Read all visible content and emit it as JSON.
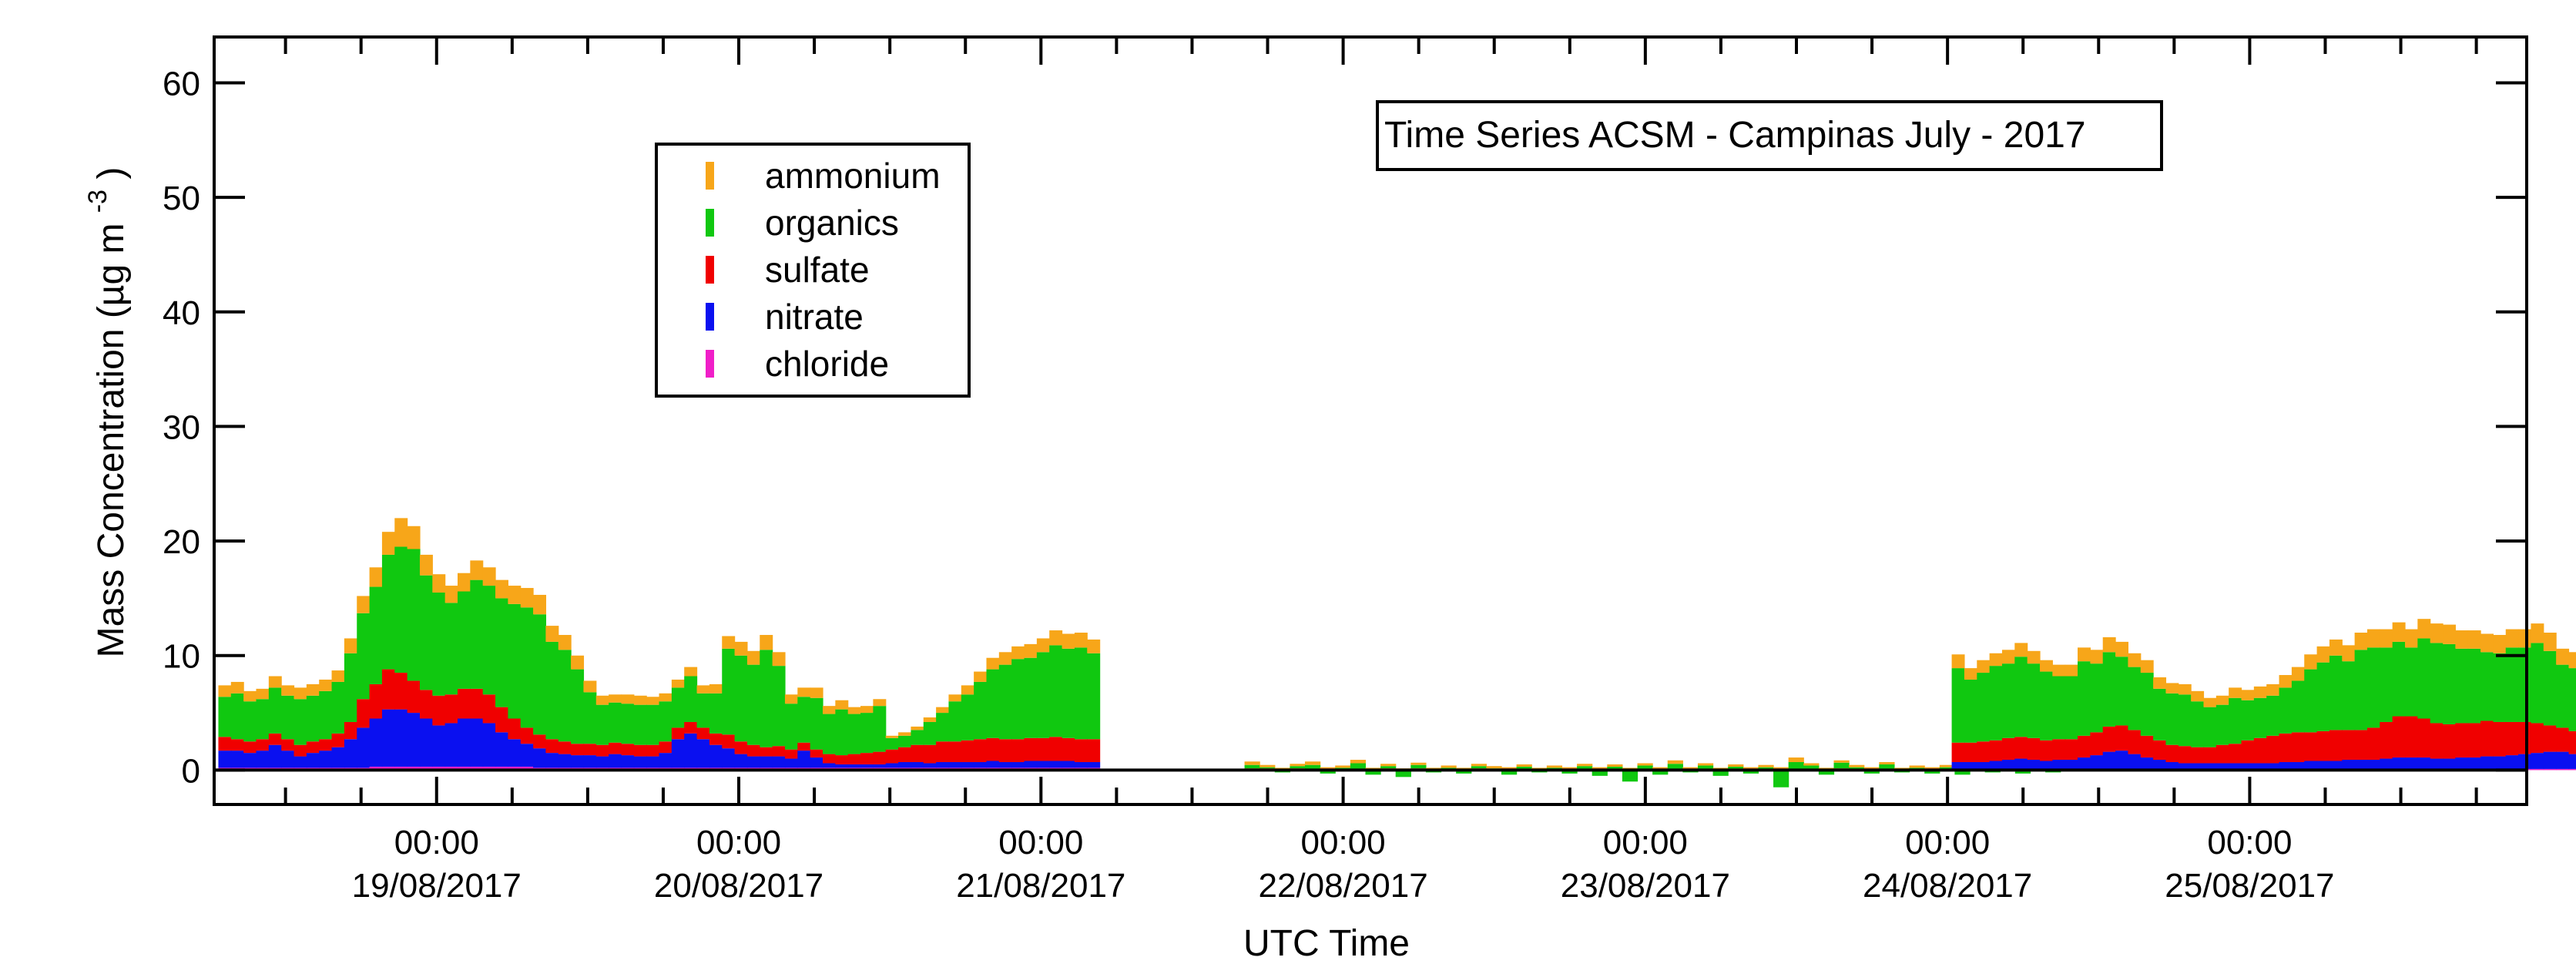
{
  "chart_data": {
    "type": "area",
    "title": "Time Series ACSM - Campinas July - 2017",
    "xlabel": "UTC Time",
    "ylabel": "Mass Concentration (µg m",
    "ylabel_sup": "-3",
    "ylabel_close": ")",
    "ylim": [
      -3,
      64
    ],
    "y_ticks": [
      0,
      10,
      20,
      30,
      40,
      50,
      60
    ],
    "x_range": [
      "2017-08-18 06:20",
      "2017-08-25 22:00"
    ],
    "x_ticks": [
      {
        "time": "00:00",
        "date": "19/08/2017"
      },
      {
        "time": "00:00",
        "date": "20/08/2017"
      },
      {
        "time": "00:00",
        "date": "21/08/2017"
      },
      {
        "time": "00:00",
        "date": "22/08/2017"
      },
      {
        "time": "00:00",
        "date": "23/08/2017"
      },
      {
        "time": "00:00",
        "date": "24/08/2017"
      },
      {
        "time": "00:00",
        "date": "25/08/2017"
      }
    ],
    "legend_position": "upper-left",
    "grid": false,
    "series": [
      {
        "name": "ammonium",
        "color": "#F7A619"
      },
      {
        "name": "organics",
        "color": "#10C810"
      },
      {
        "name": "sulfate",
        "color": "#F00000"
      },
      {
        "name": "nitrate",
        "color": "#0A10F0"
      },
      {
        "name": "chloride",
        "color": "#F01EC8"
      }
    ],
    "stack_order": [
      "chloride",
      "nitrate",
      "sulfate",
      "organics",
      "ammonium"
    ],
    "segments": [
      {
        "start": "2017-08-18 06:40",
        "step_hours": 1,
        "chloride": [
          0.2,
          0.2,
          0.2,
          0.2,
          0.2,
          0.2,
          0.2,
          0.2,
          0.2,
          0.2,
          0.2,
          0.2,
          0.3,
          0.3,
          0.3,
          0.3,
          0.3,
          0.3,
          0.3,
          0.3,
          0.3,
          0.3,
          0.3,
          0.3,
          0.3,
          0.2,
          0.2,
          0.2,
          0.2,
          0.2,
          0.2,
          0.2,
          0.2,
          0.2,
          0.2,
          0.2,
          0.2,
          0.2,
          0.2,
          0.2,
          0.2,
          0.2,
          0.2,
          0.2,
          0.2,
          0.2,
          0.2,
          0.2,
          0.2,
          0.2,
          0.2,
          0.2,
          0.2,
          0.2,
          0.2,
          0.2,
          0.2,
          0.2,
          0.2,
          0.2,
          0.2,
          0.2,
          0.2,
          0.2,
          0.2,
          0.2,
          0.2,
          0.2,
          0.2,
          0.2
        ],
        "nitrate": [
          1.5,
          1.5,
          1.3,
          1.5,
          2.0,
          1.5,
          1.0,
          1.3,
          1.5,
          1.8,
          2.5,
          3.5,
          4.2,
          5.0,
          5.0,
          4.7,
          4.2,
          3.6,
          3.8,
          4.2,
          4.2,
          3.8,
          3.0,
          2.4,
          2.0,
          1.7,
          1.3,
          1.2,
          1.1,
          1.1,
          1.0,
          1.2,
          1.1,
          1.0,
          1.0,
          1.3,
          2.5,
          3.0,
          2.5,
          2.0,
          1.7,
          1.2,
          1.0,
          1.0,
          1.0,
          0.8,
          1.5,
          0.9,
          0.4,
          0.3,
          0.3,
          0.3,
          0.3,
          0.4,
          0.5,
          0.5,
          0.4,
          0.5,
          0.5,
          0.5,
          0.5,
          0.6,
          0.5,
          0.5,
          0.6,
          0.6,
          0.6,
          0.6,
          0.5,
          0.5
        ],
        "sulfate": [
          1.2,
          1.0,
          1.0,
          1.0,
          1.0,
          1.0,
          1.0,
          1.0,
          1.0,
          1.2,
          1.5,
          2.5,
          3.0,
          3.5,
          3.2,
          2.8,
          2.5,
          2.6,
          2.5,
          2.6,
          2.6,
          2.5,
          2.2,
          1.8,
          1.4,
          1.2,
          1.2,
          1.1,
          1.0,
          1.0,
          1.0,
          1.0,
          1.0,
          1.0,
          1.0,
          1.0,
          1.0,
          1.0,
          1.0,
          1.0,
          1.2,
          1.1,
          1.0,
          0.8,
          0.9,
          0.8,
          0.7,
          0.7,
          0.8,
          0.8,
          0.9,
          1.0,
          1.1,
          1.2,
          1.3,
          1.5,
          1.6,
          1.8,
          1.8,
          1.9,
          2.0,
          2.0,
          2.0,
          2.0,
          2.0,
          2.0,
          2.1,
          2.0,
          2.0,
          2.0
        ],
        "organics": [
          3.5,
          4.0,
          3.5,
          3.5,
          4.0,
          3.8,
          4.0,
          4.0,
          4.2,
          4.5,
          6.0,
          7.5,
          8.5,
          10.0,
          11.0,
          11.5,
          10.0,
          9.0,
          8.0,
          8.5,
          9.5,
          9.5,
          9.5,
          10.0,
          10.5,
          10.5,
          8.5,
          8.0,
          6.5,
          4.5,
          3.5,
          3.5,
          3.5,
          3.5,
          3.5,
          3.5,
          3.5,
          4.0,
          3.0,
          3.5,
          7.5,
          7.5,
          7.0,
          8.5,
          7.0,
          4.0,
          4.0,
          4.5,
          3.5,
          4.0,
          3.5,
          3.5,
          4.0,
          1.0,
          1.0,
          1.3,
          2.0,
          2.5,
          3.5,
          4.0,
          5.0,
          6.0,
          6.5,
          7.0,
          7.0,
          7.5,
          8.0,
          7.8,
          8.0,
          7.5
        ],
        "ammonium": [
          1.0,
          1.0,
          0.9,
          0.9,
          1.0,
          0.9,
          1.0,
          1.0,
          1.0,
          1.0,
          1.3,
          1.5,
          1.7,
          2.0,
          2.5,
          2.0,
          1.8,
          1.6,
          1.5,
          1.6,
          1.7,
          1.6,
          1.6,
          1.6,
          1.7,
          1.7,
          1.4,
          1.3,
          1.2,
          1.0,
          0.8,
          0.7,
          0.8,
          0.8,
          0.7,
          0.7,
          0.7,
          0.8,
          0.7,
          0.8,
          1.1,
          1.2,
          1.2,
          1.3,
          1.2,
          0.8,
          0.8,
          0.9,
          0.7,
          0.8,
          0.6,
          0.6,
          0.6,
          0.2,
          0.3,
          0.3,
          0.4,
          0.5,
          0.6,
          0.8,
          0.9,
          1.0,
          1.1,
          1.1,
          1.2,
          1.2,
          1.3,
          1.3,
          1.3,
          1.2
        ]
      },
      {
        "start": "2017-08-21 16:10",
        "step_hours": 1.2,
        "chloride": [
          0,
          0,
          0,
          0,
          0,
          0,
          0,
          0,
          0,
          0,
          0,
          0,
          0,
          0,
          0,
          0,
          0,
          0,
          0,
          0,
          0,
          0,
          0,
          0,
          0,
          0,
          0,
          0,
          0,
          0,
          0,
          0,
          0,
          0,
          0,
          0,
          0,
          0,
          0,
          0,
          0,
          0,
          0,
          0,
          0,
          0,
          0,
          0,
          0,
          0,
          0,
          0,
          0,
          0,
          0
        ],
        "nitrate": [
          0.05,
          0.05,
          0,
          0.05,
          0,
          0.05,
          0,
          0.05,
          0,
          0.05,
          0,
          0.05,
          0,
          0.05,
          0,
          0.05,
          0,
          0.05,
          0,
          0.05,
          0,
          0.05,
          0,
          0.05,
          0,
          0.05,
          0,
          0.05,
          0,
          0.05,
          0,
          0.05,
          0,
          0.05,
          0,
          0.05,
          0,
          0.05,
          0,
          0.05,
          0,
          0.05,
          0,
          0.05,
          0,
          0.05,
          0,
          0.05,
          0,
          0.05,
          0,
          0.05,
          0,
          0.05,
          0
        ],
        "sulfate": [
          0.1,
          0.1,
          0.1,
          0.1,
          0.05,
          0.1,
          0.1,
          0.05,
          0.1,
          0.1,
          0.05,
          0.1,
          0.1,
          0.05,
          0.1,
          0.1,
          0.05,
          0.1,
          0.1,
          0.05,
          0.1,
          0.1,
          0.05,
          0.1,
          0.1,
          0.05,
          0.1,
          0.1,
          0.05,
          0.1,
          0.1,
          0.05,
          0.1,
          0.1,
          0.05,
          0.1,
          0.1,
          0.05,
          0.1,
          0.1,
          0.05,
          0.1,
          0.1,
          0.05,
          0.1,
          0.1,
          0.05,
          0.1,
          0.1,
          0.05,
          0.1,
          0.1,
          0.05,
          0.1,
          0.1
        ],
        "organics": [
          0.3,
          0.1,
          -0.2,
          0.2,
          0.4,
          -0.3,
          0.1,
          0.5,
          -0.4,
          0.2,
          -0.6,
          0.3,
          -0.2,
          0.1,
          -0.3,
          0.2,
          0.1,
          -0.4,
          0.2,
          -0.2,
          0.1,
          -0.3,
          0.3,
          -0.5,
          0.2,
          -1.0,
          0.3,
          -0.4,
          0.5,
          -0.2,
          0.3,
          -0.5,
          0.2,
          -0.3,
          0.2,
          -1.5,
          0.6,
          0.3,
          -0.4,
          0.5,
          0.2,
          -0.3,
          0.4,
          -0.2,
          0.1,
          -0.3,
          0.2,
          -0.4,
          0.1,
          -0.2,
          0.2,
          -0.3,
          0.1,
          -0.2,
          0.1
        ],
        "ammonium": [
          0.3,
          0.2,
          0.1,
          0.2,
          0.3,
          0.1,
          0.2,
          0.3,
          0.1,
          0.2,
          0.1,
          0.2,
          0.1,
          0.2,
          0.1,
          0.2,
          0.2,
          0.1,
          0.2,
          0.1,
          0.2,
          0.1,
          0.2,
          0.1,
          0.2,
          0.1,
          0.2,
          0.1,
          0.3,
          0.1,
          0.2,
          0.1,
          0.2,
          0.1,
          0.2,
          0.1,
          0.4,
          0.2,
          0.1,
          0.2,
          0.2,
          0.1,
          0.2,
          0.1,
          0.2,
          0.1,
          0.2,
          0.1,
          0.2,
          0.1,
          0.2,
          0.1,
          0.2,
          0.1,
          0.2
        ]
      },
      {
        "start": "2017-08-24 00:20",
        "step_hours": 1,
        "chloride": [
          0.1,
          0.1,
          0.1,
          0.1,
          0.1,
          0.1,
          0.1,
          0.1,
          0.1,
          0.1,
          0.1,
          0.1,
          0.1,
          0.1,
          0.1,
          0.1,
          0.1,
          0.1,
          0.1,
          0.1,
          0.1,
          0.1,
          0.1,
          0.1,
          0.1,
          0.1,
          0.1,
          0.1,
          0.1,
          0.1,
          0.1,
          0.1,
          0.1,
          0.1,
          0.1,
          0.1,
          0.1,
          0.1,
          0.1,
          0.1,
          0.1,
          0.1,
          0.1,
          0.1,
          0.1,
          0.1,
          0.1,
          0.1,
          0.1,
          0.1,
          0.1,
          0.1,
          0.1,
          0.1,
          0.1,
          0.1,
          0.1,
          0.1,
          0.1,
          0.1,
          0.1,
          0.1,
          0.1,
          0.1,
          0.1,
          0.1
        ],
        "nitrate": [
          0.6,
          0.6,
          0.6,
          0.7,
          0.8,
          0.9,
          0.8,
          0.7,
          0.8,
          0.8,
          1.0,
          1.2,
          1.5,
          1.6,
          1.3,
          1.0,
          0.8,
          0.6,
          0.5,
          0.5,
          0.5,
          0.5,
          0.5,
          0.5,
          0.5,
          0.5,
          0.6,
          0.6,
          0.7,
          0.7,
          0.7,
          0.8,
          0.8,
          0.8,
          0.9,
          1.0,
          1.0,
          1.0,
          0.9,
          0.9,
          1.0,
          1.0,
          1.1,
          1.1,
          1.2,
          1.3,
          1.4,
          1.5,
          1.5,
          1.3,
          1.1,
          1.0,
          0.9,
          0.8,
          0.8,
          0.8,
          0.7,
          0.7,
          0.6,
          0.6,
          0.6,
          0.6,
          0.6,
          0.6,
          0.6,
          0.6
        ],
        "sulfate": [
          1.7,
          1.7,
          1.8,
          1.8,
          1.9,
          1.9,
          1.9,
          1.8,
          1.8,
          1.8,
          1.9,
          2.0,
          2.2,
          2.2,
          2.1,
          1.9,
          1.7,
          1.5,
          1.5,
          1.4,
          1.4,
          1.6,
          1.7,
          2.0,
          2.2,
          2.4,
          2.5,
          2.6,
          2.5,
          2.6,
          2.7,
          2.6,
          2.6,
          2.8,
          3.2,
          3.6,
          3.6,
          3.4,
          3.1,
          3.0,
          3.0,
          3.0,
          3.1,
          3.0,
          2.9,
          2.8,
          2.6,
          2.3,
          2.1,
          2.0,
          1.8,
          1.6,
          1.6,
          1.6,
          1.5,
          1.5,
          1.5,
          1.5,
          1.4,
          1.4,
          1.4,
          1.4,
          1.4,
          1.4,
          1.4,
          1.4
        ],
        "organics": [
          6.5,
          5.5,
          6.0,
          6.5,
          6.5,
          7.0,
          6.5,
          6.0,
          5.5,
          5.5,
          6.5,
          6.0,
          6.5,
          6.0,
          5.5,
          5.5,
          4.5,
          4.5,
          4.5,
          4.0,
          3.5,
          3.5,
          4.0,
          3.5,
          3.5,
          3.5,
          4.0,
          4.5,
          5.5,
          6.0,
          6.5,
          6.0,
          7.0,
          7.0,
          6.5,
          6.5,
          6.0,
          7.0,
          7.0,
          7.0,
          6.5,
          6.5,
          6.0,
          6.0,
          6.5,
          6.5,
          7.0,
          6.5,
          5.5,
          5.5,
          5.0,
          5.0,
          5.0,
          6.0,
          5.5,
          5.5,
          6.0,
          6.0,
          6.0,
          5.5,
          5.5,
          5.5,
          5.5,
          6.0,
          5.5,
          5.0
        ],
        "ammonium": [
          1.2,
          1.0,
          1.1,
          1.1,
          1.2,
          1.2,
          1.1,
          1.0,
          1.0,
          1.0,
          1.2,
          1.2,
          1.3,
          1.3,
          1.2,
          1.1,
          1.0,
          0.9,
          0.9,
          0.9,
          0.8,
          0.8,
          0.9,
          0.9,
          1.0,
          1.0,
          1.1,
          1.2,
          1.3,
          1.4,
          1.4,
          1.4,
          1.5,
          1.6,
          1.6,
          1.7,
          1.6,
          1.7,
          1.7,
          1.7,
          1.6,
          1.6,
          1.6,
          1.6,
          1.6,
          1.6,
          1.7,
          1.6,
          1.4,
          1.4,
          1.3,
          1.2,
          1.2,
          1.3,
          1.2,
          1.2,
          1.2,
          1.2,
          1.2,
          1.1,
          1.1,
          1.1,
          1.1,
          1.1,
          1.1,
          1.0
        ]
      }
    ]
  }
}
